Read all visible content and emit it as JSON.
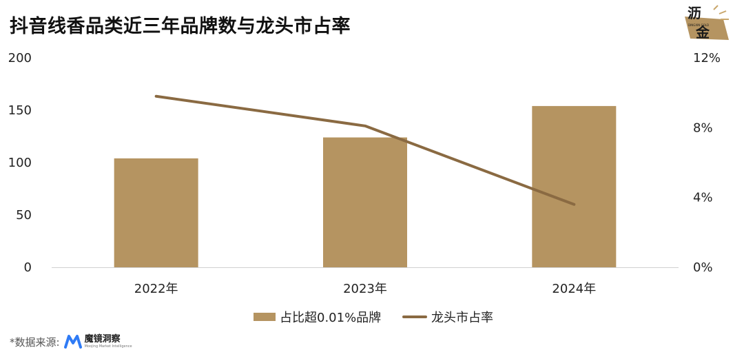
{
  "title": "抖音线香品类近三年品牌数与龙头市占率",
  "logo": {
    "text_line1": "沥",
    "text_line2": "金",
    "small_text": "DINGXIN GOLD",
    "colors": {
      "tile": "#b59461",
      "ink": "#1a1a1a"
    }
  },
  "chart_data": {
    "type": "bar",
    "categories": [
      "2022年",
      "2023年",
      "2024年"
    ],
    "series": [
      {
        "name": "占比超0.01%品牌",
        "type": "bar",
        "axis": "left",
        "values": [
          104,
          124,
          154
        ],
        "color": "#b59461"
      },
      {
        "name": "龙头市占率",
        "type": "line",
        "axis": "right",
        "values": [
          9.8,
          8.1,
          3.6
        ],
        "color": "#8a6a42"
      }
    ],
    "y_left": {
      "min": 0,
      "max": 200,
      "ticks": [
        0,
        50,
        100,
        150,
        200
      ]
    },
    "y_right": {
      "min": 0,
      "max": 12,
      "ticks": [
        0,
        4,
        8,
        12
      ],
      "tick_labels": [
        "0%",
        "4%",
        "8%",
        "12%"
      ]
    },
    "grid": false,
    "legend": "bottom-center"
  },
  "legend": {
    "bar_label": "占比超0.01%品牌",
    "line_label": "龙头市占率"
  },
  "source": {
    "prefix": "*数据来源:",
    "brand_cn": "魔镜洞察",
    "brand_en": "Moojing Market Intelligence",
    "brand_color": "#2f7bf5"
  }
}
